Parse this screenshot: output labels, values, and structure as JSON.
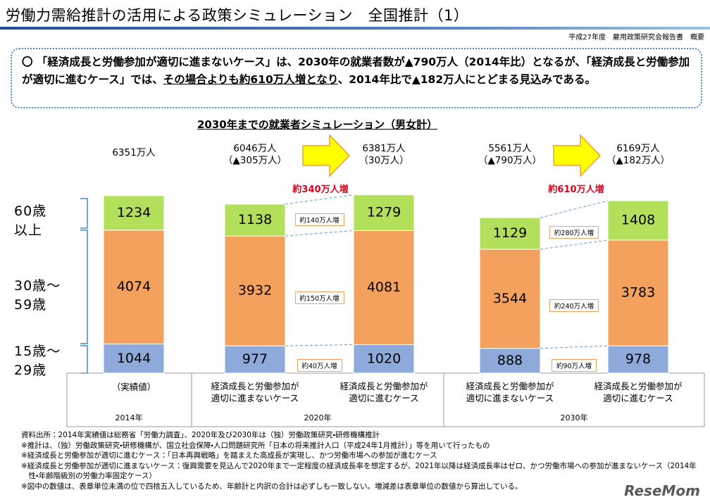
{
  "header": {
    "title": "労働力需給推計の活用による政策シミュレーション　全国推計（1）",
    "source": "平成27年度　雇用政策研究会報告書　概要"
  },
  "summary": [
    "〇 「経済成長と労働参加が適切に進まないケース」は、2030年の就業者数が▲790万人（2014年比）となるが、「経済成長と労働参加が適切に進むケース」では、",
    "その場合よりも約610万人増となり",
    "、2014年比で▲182万人にとどまる見込みである。"
  ],
  "chart_data": {
    "type": "bar",
    "stacked": true,
    "title": "2030年までの就業者シミュレーション（男女計）",
    "categories": [
      "（実績値）",
      "経済成長と労働参加が\n適切に進まないケース",
      "経済成長と労働参加が\n適切に進むケース",
      "経済成長と労働参加が\n適切に進まないケース",
      "経済成長と労働参加が\n適切に進むケース"
    ],
    "groups": [
      "2014年",
      "2020年",
      "2030年"
    ],
    "series": [
      {
        "name": "15歳～\n29歳",
        "color": "#8eaadb",
        "values": [
          1044,
          977,
          1020,
          888,
          978
        ]
      },
      {
        "name": "30歳～\n59歳",
        "color": "#f4a15d",
        "values": [
          4074,
          3932,
          4081,
          3544,
          3783
        ]
      },
      {
        "name": "60歳\n以上",
        "color": "#b3e05a",
        "values": [
          1234,
          1138,
          1279,
          1129,
          1408
        ]
      }
    ],
    "totals": [
      "6351万人",
      "6046万人",
      "6381万人",
      "5561万人",
      "6169万人"
    ],
    "changes": [
      null,
      "（▲305万人）",
      "（30万人）",
      "（▲790万人）",
      "（▲182万人）"
    ],
    "group_increase": [
      null,
      "約340万人増",
      "約610万人増"
    ],
    "segment_increase": [
      [
        "約40万人増",
        "約150万人増",
        "約140万人増"
      ],
      [
        "約90万人増",
        "約240万人増",
        "約280万人増"
      ]
    ]
  },
  "notes": [
    "資料出所：2014年実績値は総務省「労働力調査」、2020年及び2030年は（独）労働政策研究・研修機構推計",
    "※推計は、（独）労働政策研究・研修機構が、国立社会保障・人口問題研究所「日本の将来推計人口（平成24年1月推計）」等を用いて行ったもの",
    "※経済成長と労働参加が適切に進むケース：「日本再興戦略」を踏まえた高成長が実現し、かつ労働市場への参加が進むケース",
    "※経済成長と労働参加が適切に進まないケース：復興需要を見込んで2020年まで一定程度の経済成長率を想定するが、2021年以降は経済成長率はゼロ、かつ労働市場への参加が進まないケース（2014年性・年齢階級別の労働力率固定ケース）",
    "※図中の数値は、表章単位未満の位で四捨五入しているため、年齢計と内訳の合計は必ずしも一致しない。増減差は表章単位の数値から算出している。"
  ],
  "logo": "ReseMom"
}
